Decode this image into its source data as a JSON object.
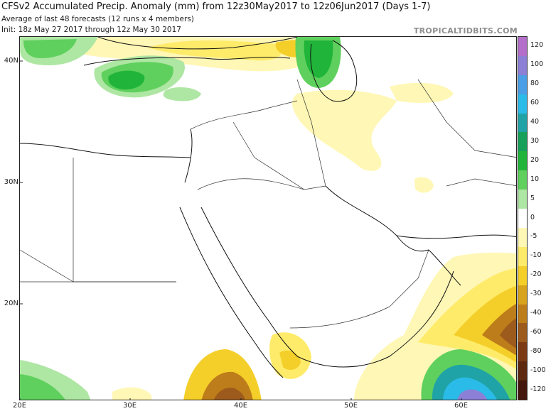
{
  "header": {
    "title": "CFSv2 Accumulated Precip. Anomaly (mm) from 12z30May2017 to 12z06Jun2017 (Days 1-7)",
    "subtitle1": "Average of last 48 forecasts (12 runs x 4 members)",
    "subtitle2": "Init: 18z May 27 2017 through 12z May 30 2017",
    "brand": "TROPICALTIDBITS.COM"
  },
  "map": {
    "lat_labels": [
      "40N",
      "30N",
      "20N"
    ],
    "lon_labels": [
      "20E",
      "30E",
      "40E",
      "50E",
      "60E"
    ]
  },
  "colorbar": {
    "unit": "mm",
    "levels": [
      {
        "label": "120",
        "color": "#b36fc9"
      },
      {
        "label": "100",
        "color": "#8b7fd6"
      },
      {
        "label": "80",
        "color": "#4a9fe6"
      },
      {
        "label": "60",
        "color": "#2bbbe8"
      },
      {
        "label": "40",
        "color": "#20a3a6"
      },
      {
        "label": "30",
        "color": "#16a05a"
      },
      {
        "label": "20",
        "color": "#21b43a"
      },
      {
        "label": "10",
        "color": "#5fd05d"
      },
      {
        "label": "5",
        "color": "#aee6a3"
      },
      {
        "label": "0",
        "color": "#ffffff"
      },
      {
        "label": "-5",
        "color": "#fff7b5"
      },
      {
        "label": "-10",
        "color": "#ffeb6a"
      },
      {
        "label": "-20",
        "color": "#f4cf2a"
      },
      {
        "label": "-30",
        "color": "#d8a41d"
      },
      {
        "label": "-40",
        "color": "#bd7d1a"
      },
      {
        "label": "-60",
        "color": "#9c5a1c"
      },
      {
        "label": "-80",
        "color": "#7b3a14"
      },
      {
        "label": "-100",
        "color": "#5e2710"
      },
      {
        "label": "-120",
        "color": "#43170b"
      }
    ]
  }
}
